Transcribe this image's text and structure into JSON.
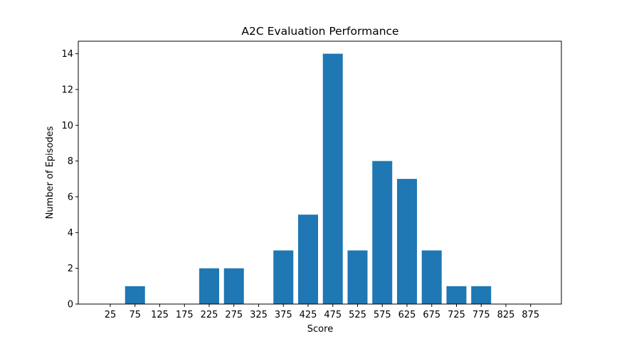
{
  "chart_data": {
    "type": "bar",
    "title": "A2C Evaluation Performance",
    "xlabel": "Score",
    "ylabel": "Number of Episodes",
    "categories": [
      "25",
      "75",
      "125",
      "175",
      "225",
      "275",
      "325",
      "375",
      "425",
      "475",
      "525",
      "575",
      "625",
      "675",
      "725",
      "775",
      "825",
      "875"
    ],
    "values": [
      0,
      1,
      0,
      0,
      2,
      2,
      0,
      3,
      5,
      14,
      3,
      8,
      7,
      3,
      1,
      1,
      0,
      0
    ],
    "ylim": [
      0,
      14.7
    ],
    "yticks": [
      0,
      2,
      4,
      6,
      8,
      10,
      12,
      14
    ],
    "grid": false,
    "legend": "none",
    "bar_color": "#1f77b4"
  }
}
